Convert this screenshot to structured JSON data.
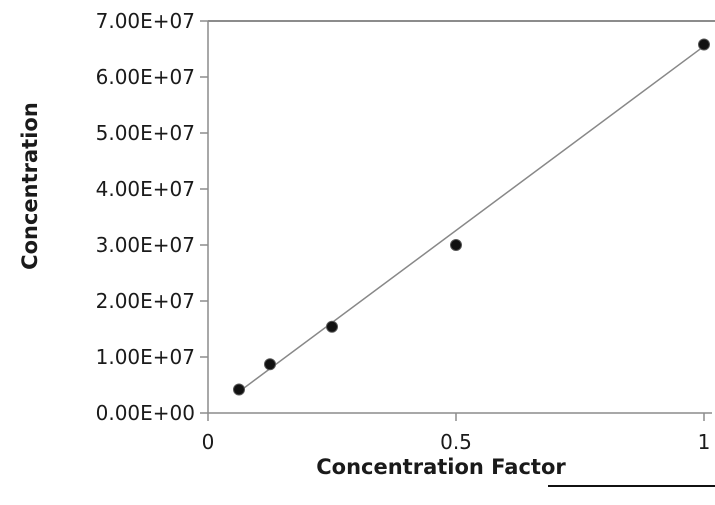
{
  "chart_data": {
    "type": "scatter",
    "xlabel": "Concentration Factor",
    "ylabel": "Concentration",
    "xlim": [
      0,
      1
    ],
    "ylim": [
      0,
      70000000
    ],
    "x_ticks": [
      {
        "value": 0,
        "label": "0"
      },
      {
        "value": 0.5,
        "label": "0.5"
      },
      {
        "value": 1,
        "label": "1"
      }
    ],
    "y_ticks": [
      {
        "value": 0,
        "label": "0.00E+00"
      },
      {
        "value": 10000000,
        "label": "1.00E+07"
      },
      {
        "value": 20000000,
        "label": "2.00E+07"
      },
      {
        "value": 30000000,
        "label": "3.00E+07"
      },
      {
        "value": 40000000,
        "label": "4.00E+07"
      },
      {
        "value": 50000000,
        "label": "5.00E+07"
      },
      {
        "value": 60000000,
        "label": "6.00E+07"
      },
      {
        "value": 70000000,
        "label": "7.00E+07"
      }
    ],
    "points": [
      {
        "x": 0.0625,
        "y": 4200000
      },
      {
        "x": 0.125,
        "y": 8700000
      },
      {
        "x": 0.25,
        "y": 15400000
      },
      {
        "x": 0.5,
        "y": 30000000
      },
      {
        "x": 1,
        "y": 65800000
      }
    ],
    "trendline": {
      "x": [
        0.0625,
        1
      ],
      "y": [
        3800000,
        65500000
      ]
    },
    "grid": false,
    "legend": "none",
    "colors": {
      "marker": "#111111",
      "trendline": "#888888",
      "axis": "#8c8c8c",
      "text": "#1a1a1a"
    }
  }
}
